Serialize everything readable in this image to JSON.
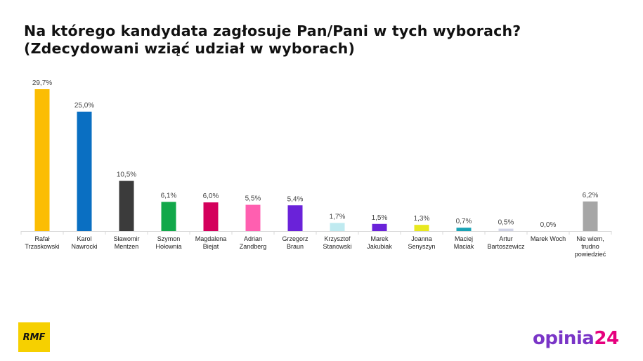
{
  "title": {
    "line1": "Na którego kandydata zagłosuje Pan/Pani w tych wyborach?",
    "line2": "(Zdecydowani wziąć udział w wyborach)"
  },
  "logos": {
    "rmf": "RMF",
    "opinia_word": "opinia",
    "opinia_num": "24"
  },
  "chart_data": {
    "type": "bar",
    "categories": [
      [
        "Rafał",
        "Trzaskowski"
      ],
      [
        "Karol",
        "Nawrocki"
      ],
      [
        "Sławomir",
        "Mentzen"
      ],
      [
        "Szymon",
        "Hołownia"
      ],
      [
        "Magdalena",
        "Biejat"
      ],
      [
        "Adrian",
        "Zandberg"
      ],
      [
        "Grzegorz",
        "Braun"
      ],
      [
        "Krzysztof",
        "Stanowski"
      ],
      [
        "Marek",
        "Jakubiak"
      ],
      [
        "Joanna",
        "Senyszyn"
      ],
      [
        "Maciej",
        "Maciak"
      ],
      [
        "Artur",
        "Bartoszewicz"
      ],
      [
        "Marek Woch"
      ],
      [
        "Nie wiem,",
        "trudno",
        "powiedzieć"
      ]
    ],
    "values": [
      29.7,
      25.0,
      10.5,
      6.1,
      6.0,
      5.5,
      5.4,
      1.7,
      1.5,
      1.3,
      0.7,
      0.5,
      0.0,
      6.2
    ],
    "value_labels": [
      "29,7%",
      "25,0%",
      "10,5%",
      "6,1%",
      "6,0%",
      "5,5%",
      "5,4%",
      "1,7%",
      "1,5%",
      "1,3%",
      "0,7%",
      "0,5%",
      "0,0%",
      "6,2%"
    ],
    "colors": [
      "#fbbd03",
      "#0a6fc2",
      "#3b3b3b",
      "#12a84a",
      "#d4005c",
      "#ff5fb0",
      "#6a22d9",
      "#bfeaf0",
      "#6a22d9",
      "#e8e820",
      "#1aa3b5",
      "#d0d3e6",
      "#f5f5f5",
      "#a6a6a6"
    ],
    "ylim": [
      0,
      30
    ],
    "grid": false,
    "legend": "none",
    "xlabel": "",
    "ylabel": ""
  }
}
